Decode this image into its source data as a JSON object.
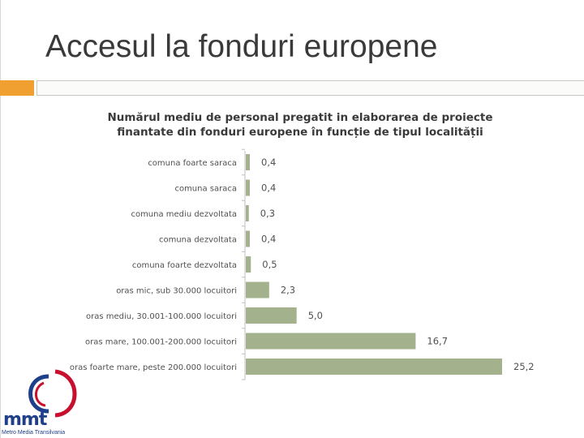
{
  "slide": {
    "title": "Accesul la fonduri europene"
  },
  "logo": {
    "short": "mmt",
    "full": "Metro Media Transilvania"
  },
  "colors": {
    "bar": "#a3b18c",
    "accent": "#f0a030",
    "axis": "#bfbfbf",
    "brand_blue": "#1f3f8a",
    "brand_red": "#c8102e"
  },
  "chart_data": {
    "type": "bar",
    "orientation": "horizontal",
    "title_lines": [
      "Numărul mediu de personal pregatit in elaborarea de proiecte",
      "finantate din fonduri europene în funcție de tipul localității"
    ],
    "categories": [
      "comuna foarte saraca",
      "comuna saraca",
      "comuna mediu dezvoltata",
      "comuna dezvoltata",
      "comuna foarte dezvoltata",
      "oras mic, sub 30.000 locuitori",
      "oras mediu, 30.001-100.000 locuitori",
      "oras mare, 100.001-200.000 locuitori",
      "oras foarte mare, peste 200.000 locuitori"
    ],
    "values": [
      0.4,
      0.4,
      0.3,
      0.4,
      0.5,
      2.3,
      5.0,
      16.7,
      25.2
    ],
    "value_labels": [
      "0,4",
      "0,4",
      "0,3",
      "0,4",
      "0,5",
      "2,3",
      "5,0",
      "16,7",
      "25,2"
    ],
    "xlim": [
      0,
      25.2
    ],
    "grid": false,
    "legend": "none"
  }
}
